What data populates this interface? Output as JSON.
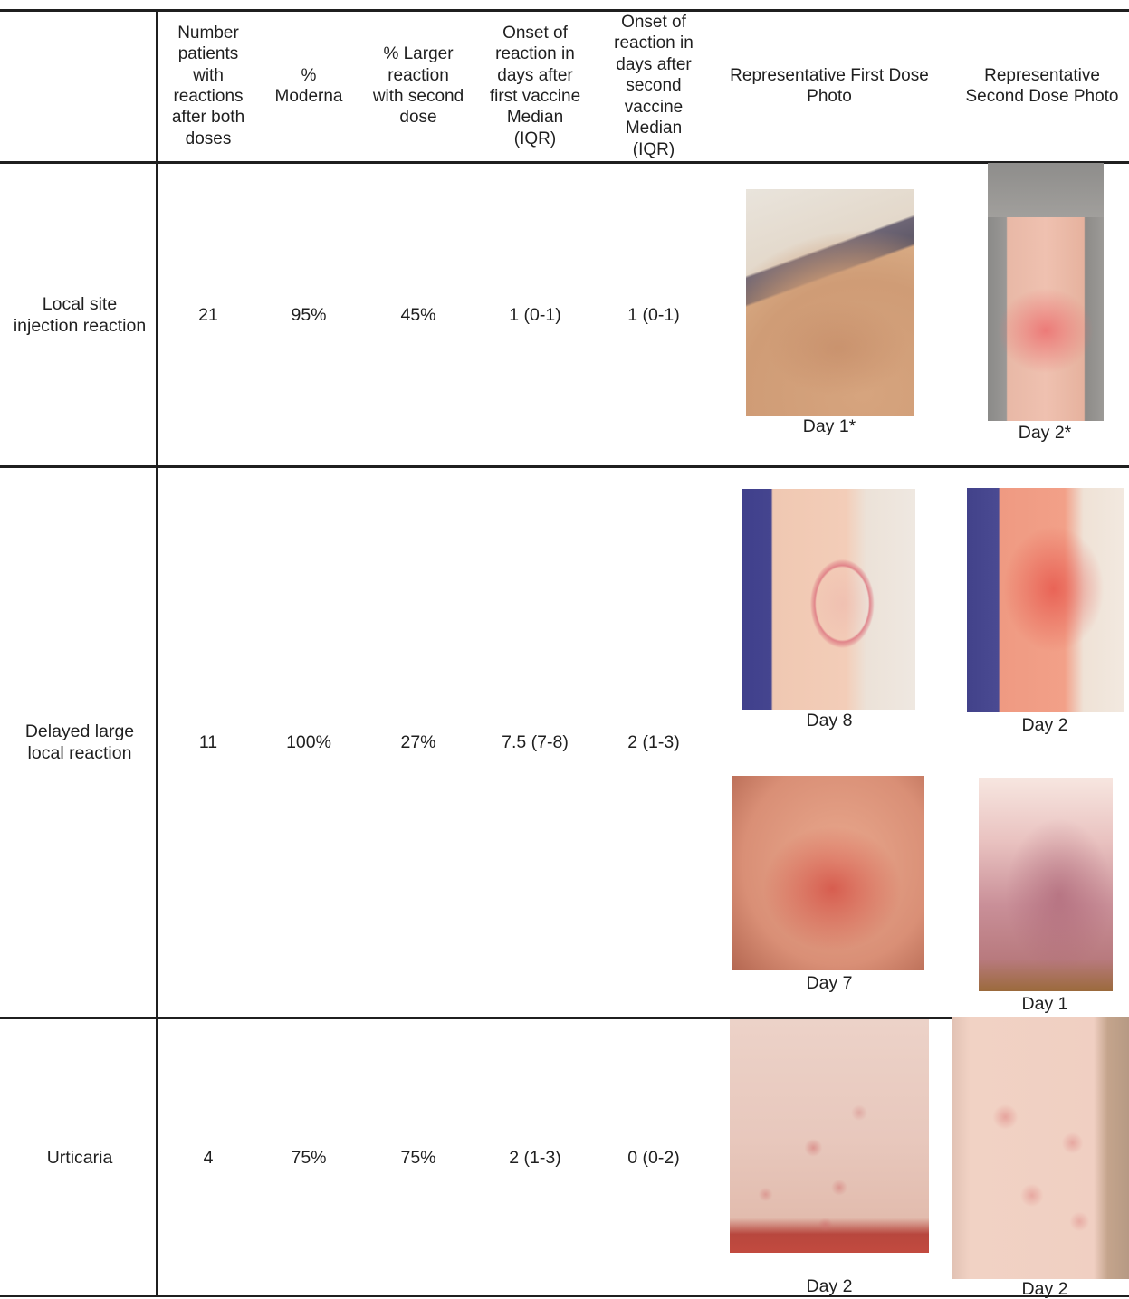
{
  "table": {
    "headers": {
      "category": "",
      "num_patients": "Number patients with reactions after both doses",
      "pct_moderna": "% Moderna",
      "pct_larger": "% Larger reaction with second dose",
      "onset_first": "Onset of reaction in days after first vaccine Median (IQR)",
      "onset_second": "Onset of reaction in days after second vaccine Median (IQR)",
      "first_photo": "Representative First Dose Photo",
      "second_photo": "Representative Second Dose Photo"
    },
    "rows": [
      {
        "category": "Local site injection reaction",
        "num_patients": "21",
        "pct_moderna": "95%",
        "pct_larger": "45%",
        "onset_first": "1 (0-1)",
        "onset_second": "1 (0-1)",
        "first_photos": [
          {
            "caption": "Day 1*"
          }
        ],
        "second_photos": [
          {
            "caption": "Day 2*"
          }
        ]
      },
      {
        "category": "Delayed large local reaction",
        "num_patients": "11",
        "pct_moderna": "100%",
        "pct_larger": "27%",
        "onset_first": "7.5 (7-8)",
        "onset_second": "2 (1-3)",
        "first_photos": [
          {
            "caption": "Day 8"
          },
          {
            "caption": "Day 7"
          }
        ],
        "second_photos": [
          {
            "caption": "Day 2"
          },
          {
            "caption": "Day 1"
          }
        ]
      },
      {
        "category": "Urticaria",
        "num_patients": "4",
        "pct_moderna": "75%",
        "pct_larger": "75%",
        "onset_first": "2 (1-3)",
        "onset_second": "0 (0-2)",
        "first_photos": [
          {
            "caption": "Day 2"
          }
        ],
        "second_photos": [
          {
            "caption": "Day 2"
          }
        ]
      }
    ]
  }
}
